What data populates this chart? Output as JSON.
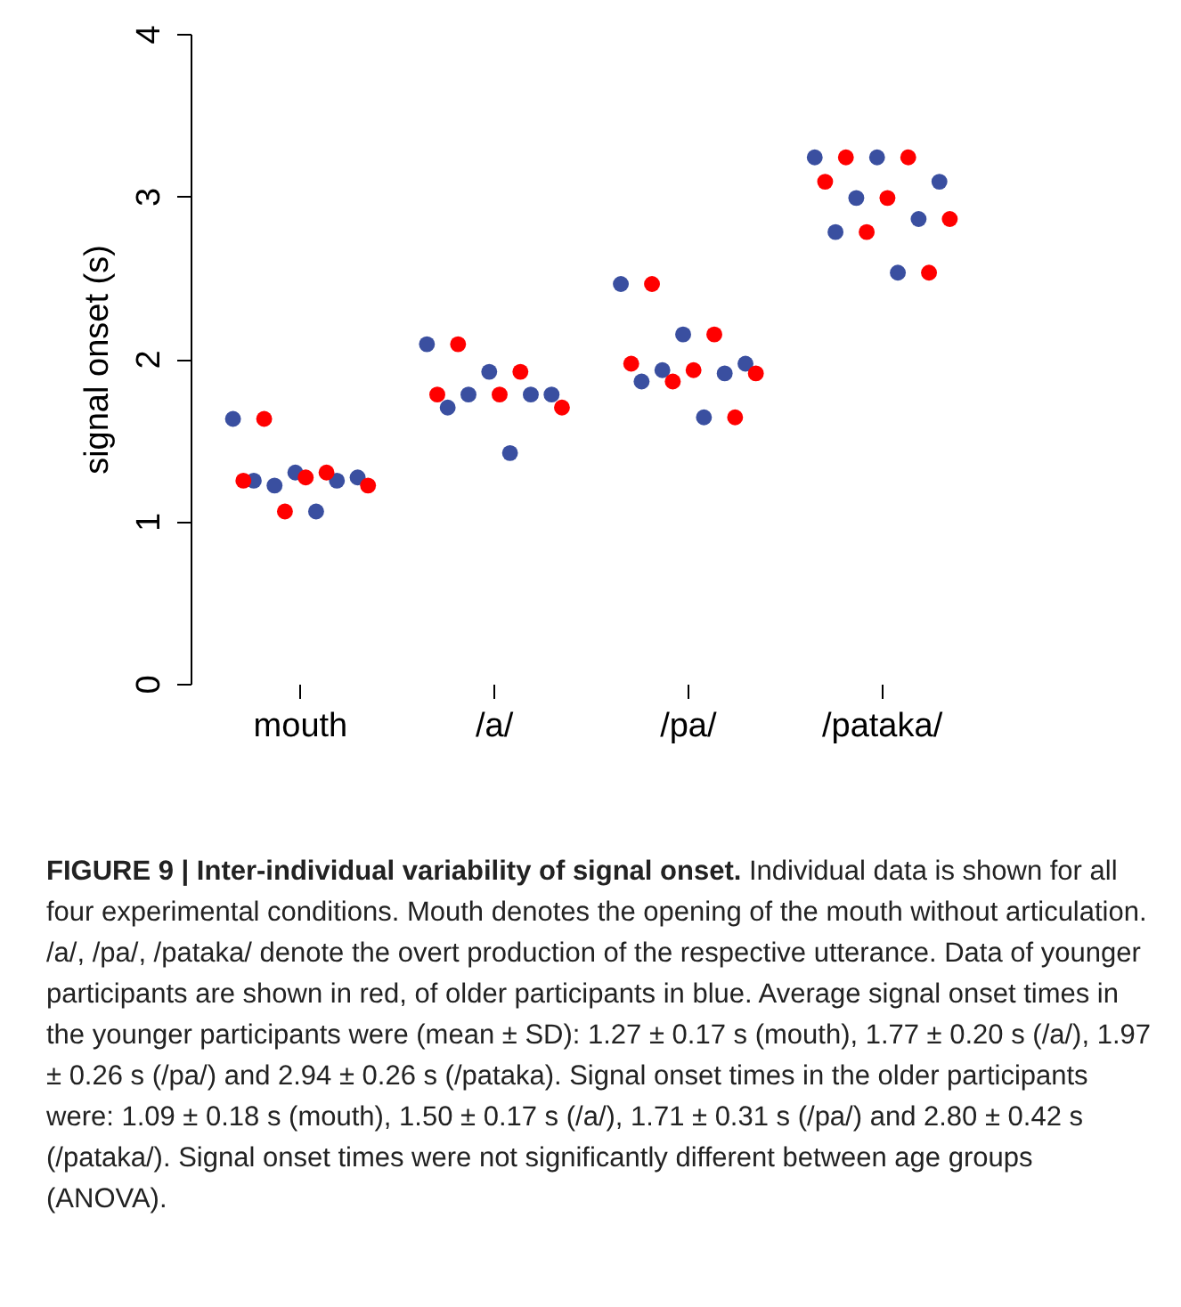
{
  "chart_data": {
    "type": "scatter",
    "title": "FIGURE 9 | Inter-individual variability of signal onset.",
    "ylabel": "signal onset (s)",
    "categories": [
      "mouth",
      "/a/",
      "/pa/",
      "/pataka/"
    ],
    "ylim": [
      0,
      4
    ],
    "yticks": [
      0,
      1,
      2,
      3,
      4
    ],
    "grid": false,
    "legend": false,
    "marker": "circle",
    "series": [
      {
        "color": "#3a4fa0",
        "x": [
          "mouth",
          "mouth",
          "mouth",
          "mouth",
          "mouth",
          "mouth",
          "mouth",
          "/a/",
          "/a/",
          "/a/",
          "/a/",
          "/a/",
          "/a/",
          "/a/",
          "/pa/",
          "/pa/",
          "/pa/",
          "/pa/",
          "/pa/",
          "/pa/",
          "/pa/",
          "/pataka/",
          "/pataka/",
          "/pataka/",
          "/pataka/",
          "/pataka/",
          "/pataka/",
          "/pataka/"
        ],
        "values": [
          1.63,
          1.3,
          1.27,
          1.22,
          1.25,
          1.25,
          1.06,
          2.09,
          1.92,
          1.78,
          1.78,
          1.78,
          1.7,
          1.42,
          2.46,
          2.15,
          1.97,
          1.93,
          1.91,
          1.86,
          1.64,
          3.24,
          3.24,
          3.09,
          2.99,
          2.86,
          2.78,
          2.53
        ]
      },
      {
        "color": "#ff0000",
        "x": [
          "mouth",
          "mouth",
          "mouth",
          "mouth",
          "mouth",
          "mouth",
          "/a/",
          "/a/",
          "/a/",
          "/a/",
          "/a/",
          "/pa/",
          "/pa/",
          "/pa/",
          "/pa/",
          "/pa/",
          "/pa/",
          "/pa/",
          "/pataka/",
          "/pataka/",
          "/pataka/",
          "/pataka/",
          "/pataka/",
          "/pataka/",
          "/pataka/"
        ],
        "values": [
          1.63,
          1.3,
          1.25,
          1.27,
          1.22,
          1.06,
          2.09,
          1.92,
          1.78,
          1.78,
          1.7,
          2.46,
          2.15,
          1.97,
          1.93,
          1.91,
          1.86,
          1.64,
          3.24,
          3.24,
          3.09,
          2.99,
          2.86,
          2.78,
          2.53
        ]
      }
    ],
    "annotations": [
      "Individual data is shown for all four experimental conditions. Mouth denotes the opening of the mouth without articulation. /a/, /pa/, /pataka/ denote the overt production of the respective utterance. Data of younger participants are shown in red, of older participants in blue. Average signal onset times in the younger participants were (mean ± SD): 1.27 ± 0.17 s (mouth), 1.77 ± 0.20 s (/a/), 1.97 ± 0.26 s (/pa/) and 2.94 ± 0.26 s (/pataka). Signal onset times in the older participants were: 1.09 ± 0.18 s (mouth), 1.50 ± 0.17 s (/a/), 1.71 ± 0.31 s (/pa/) and 2.80 ± 0.42 s (/pataka/). Signal onset times were not significantly different between age groups (ANOVA)."
    ]
  }
}
